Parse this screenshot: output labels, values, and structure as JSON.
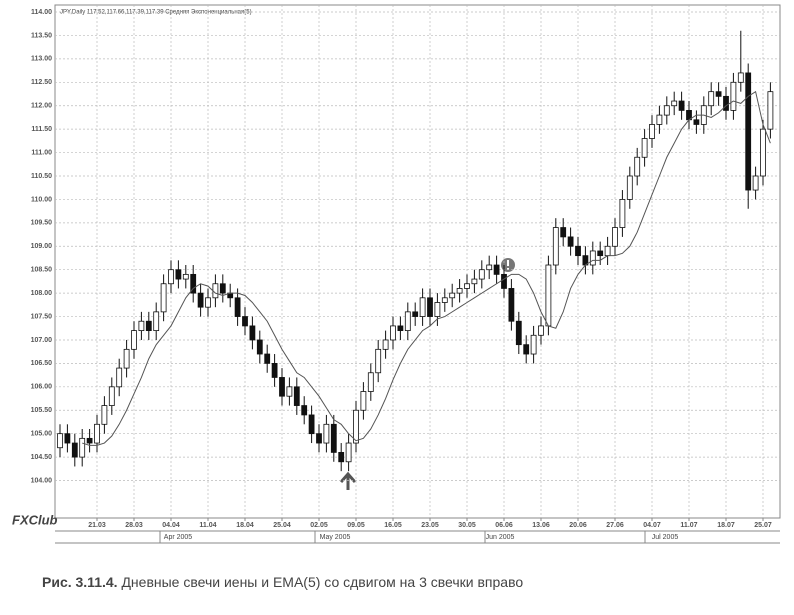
{
  "chart_data": {
    "type": "candlestick",
    "header": "JPY,Daily 117.52,117.66,117.39,117.39  Средняя Экспоненциальная(5)",
    "categories": [
      null,
      null,
      null,
      null,
      null,
      "21.03",
      null,
      null,
      null,
      null,
      "28.03",
      null,
      null,
      null,
      null,
      "04.04",
      null,
      null,
      null,
      null,
      "11.04",
      null,
      null,
      null,
      null,
      "18.04",
      null,
      null,
      null,
      null,
      "25.04",
      null,
      null,
      null,
      null,
      "02.05",
      null,
      null,
      null,
      null,
      "09.05",
      null,
      null,
      null,
      null,
      "16.05",
      null,
      null,
      null,
      null,
      "23.05",
      null,
      null,
      null,
      null,
      "30.05",
      null,
      null,
      null,
      null,
      "06.06",
      null,
      null,
      null,
      null,
      "13.06",
      null,
      null,
      null,
      null,
      "20.06",
      null,
      null,
      null,
      null,
      "27.06",
      null,
      null,
      null,
      null,
      "04.07",
      null,
      null,
      null,
      null,
      "11.07",
      null,
      null,
      null,
      null,
      "18.07",
      null,
      null,
      null,
      null,
      "25.07",
      null
    ],
    "open": [
      104.7,
      105,
      104.8,
      104.5,
      104.9,
      104.8,
      105.2,
      105.6,
      106,
      106.4,
      106.8,
      107.2,
      107.4,
      107.2,
      107.6,
      108.2,
      108.5,
      108.3,
      108.4,
      108,
      107.7,
      107.9,
      108.2,
      108,
      107.9,
      107.5,
      107.3,
      107,
      106.7,
      106.5,
      106.2,
      105.8,
      106,
      105.6,
      105.4,
      105,
      104.8,
      105.2,
      104.6,
      104.4,
      104.8,
      105.5,
      105.9,
      106.3,
      106.8,
      107,
      107.3,
      107.2,
      107.6,
      107.5,
      107.9,
      107.5,
      107.8,
      107.9,
      108,
      108.1,
      108.2,
      108.3,
      108.5,
      108.6,
      108.4,
      108.1,
      107.4,
      106.9,
      106.7,
      107.1,
      107.3,
      108.6,
      109.4,
      109.2,
      109,
      108.8,
      108.6,
      108.9,
      108.8,
      109,
      109.4,
      110,
      110.5,
      110.9,
      111.3,
      111.6,
      111.8,
      112,
      112.1,
      111.9,
      111.7,
      111.6,
      112,
      112.3,
      112.2,
      111.9,
      112.5,
      112.7,
      110.2,
      110.5,
      111.5
    ],
    "high": [
      105.2,
      105.2,
      105,
      105.1,
      105.1,
      105.4,
      105.8,
      106.2,
      106.6,
      107,
      107.4,
      107.6,
      107.6,
      107.8,
      108.4,
      108.7,
      108.7,
      108.6,
      108.6,
      108.2,
      108.1,
      108.4,
      108.4,
      108.2,
      108.1,
      107.7,
      107.5,
      107.2,
      106.9,
      106.7,
      106.4,
      106.2,
      106.2,
      105.8,
      105.6,
      105.2,
      105.4,
      105.4,
      104.8,
      105,
      105.7,
      106.1,
      106.5,
      107,
      107.2,
      107.5,
      107.5,
      107.8,
      107.8,
      108.1,
      108.1,
      108,
      108.1,
      108.2,
      108.3,
      108.4,
      108.5,
      108.7,
      108.8,
      108.8,
      108.6,
      108.3,
      107.6,
      107.1,
      107.3,
      107.5,
      108.8,
      109.6,
      109.6,
      109.4,
      109.2,
      109,
      109.1,
      109.1,
      109.2,
      109.6,
      110.2,
      110.7,
      111.1,
      111.5,
      111.8,
      112,
      112.2,
      112.3,
      112.3,
      112.1,
      111.9,
      112.2,
      112.5,
      112.5,
      112.4,
      112.7,
      113.6,
      112.9,
      110.7,
      111.7,
      112.5
    ],
    "low": [
      104.5,
      104.6,
      104.3,
      104.3,
      104.6,
      104.6,
      105,
      105.4,
      105.8,
      106.2,
      106.6,
      107,
      107,
      107,
      107.4,
      108,
      108.1,
      108.1,
      107.8,
      107.5,
      107.5,
      107.7,
      107.8,
      107.7,
      107.3,
      107.1,
      106.8,
      106.5,
      106.3,
      106,
      105.6,
      105.6,
      105.4,
      105.2,
      104.8,
      104.6,
      104.6,
      104.4,
      104.2,
      104.2,
      104.6,
      105.3,
      105.7,
      106.1,
      106.6,
      106.8,
      107,
      107,
      107.3,
      107.3,
      107.3,
      107.3,
      107.6,
      107.7,
      107.8,
      107.9,
      108,
      108.1,
      108.3,
      108.2,
      107.9,
      107.2,
      106.7,
      106.5,
      106.5,
      106.9,
      107.1,
      108.4,
      109,
      108.8,
      108.6,
      108.4,
      108.4,
      108.6,
      108.6,
      108.8,
      109.2,
      109.8,
      110.3,
      110.7,
      111.1,
      111.4,
      111.6,
      111.8,
      111.7,
      111.5,
      111.4,
      111.4,
      111.8,
      112,
      111.7,
      111.7,
      112.3,
      109.8,
      110,
      110.3,
      111.3
    ],
    "close": [
      105,
      104.8,
      104.5,
      104.9,
      104.8,
      105.2,
      105.6,
      106,
      106.4,
      106.8,
      107.2,
      107.4,
      107.2,
      107.6,
      108.2,
      108.5,
      108.3,
      108.4,
      108,
      107.7,
      107.9,
      108.2,
      108,
      107.9,
      107.5,
      107.3,
      107,
      106.7,
      106.5,
      106.2,
      105.8,
      106,
      105.6,
      105.4,
      105,
      104.8,
      105.2,
      104.6,
      104.4,
      104.8,
      105.5,
      105.9,
      106.3,
      106.8,
      107,
      107.3,
      107.2,
      107.6,
      107.5,
      107.9,
      107.5,
      107.8,
      107.9,
      108,
      108.1,
      108.2,
      108.3,
      108.5,
      108.6,
      108.4,
      108.1,
      107.4,
      106.9,
      106.7,
      107.1,
      107.3,
      108.6,
      109.4,
      109.2,
      109,
      108.8,
      108.6,
      108.9,
      108.8,
      109,
      109.4,
      110,
      110.5,
      110.9,
      111.3,
      111.6,
      111.8,
      112,
      112.1,
      111.9,
      111.7,
      111.6,
      112,
      112.3,
      112.2,
      111.9,
      112.5,
      112.7,
      110.2,
      110.5,
      111.5,
      112.3
    ],
    "ema": [
      null,
      null,
      null,
      104.8,
      104.75,
      104.75,
      104.8,
      104.95,
      105.2,
      105.5,
      105.85,
      106.2,
      106.6,
      106.9,
      107.1,
      107.3,
      107.6,
      107.9,
      108.1,
      108.2,
      108.15,
      108,
      107.95,
      108,
      108,
      107.95,
      107.8,
      107.6,
      107.4,
      107.1,
      106.8,
      106.55,
      106.3,
      106.2,
      106,
      105.8,
      105.55,
      105.3,
      105.2,
      105,
      104.85,
      104.9,
      105.1,
      105.4,
      105.75,
      106.15,
      106.5,
      106.8,
      107,
      107.2,
      107.3,
      107.45,
      107.5,
      107.6,
      107.7,
      107.8,
      107.9,
      108,
      108.1,
      108.2,
      108.3,
      108.4,
      108.4,
      108.3,
      108,
      107.6,
      107.3,
      107.25,
      107.6,
      108.1,
      108.4,
      108.6,
      108.7,
      108.7,
      108.8,
      108.8,
      108.85,
      109,
      109.3,
      109.7,
      110.1,
      110.5,
      110.9,
      111.2,
      111.5,
      111.7,
      111.8,
      111.8,
      111.75,
      111.85,
      112,
      112.1,
      112.05,
      112.2,
      112.3,
      111.6,
      111.2
    ],
    "up_color": "#ffffff",
    "down_color": "#111111",
    "line_color": "#555555",
    "ylim": [
      103.2,
      114.15
    ],
    "yticks": [
      {
        "value": 104,
        "label": "104.00"
      },
      {
        "value": 104.5,
        "label": "104.50"
      },
      {
        "value": 105,
        "label": "105.00"
      },
      {
        "value": 105.5,
        "label": "105.50"
      },
      {
        "value": 106,
        "label": "106.00"
      },
      {
        "value": 106.5,
        "label": "106.50"
      },
      {
        "value": 107,
        "label": "107.00"
      },
      {
        "value": 107.5,
        "label": "107.50"
      },
      {
        "value": 108,
        "label": "108.00"
      },
      {
        "value": 108.5,
        "label": "108.50"
      },
      {
        "value": 109,
        "label": "109.00"
      },
      {
        "value": 109.5,
        "label": "109.50"
      },
      {
        "value": 110,
        "label": "110.00"
      },
      {
        "value": 110.5,
        "label": "110.50"
      },
      {
        "value": 111,
        "label": "111.00"
      },
      {
        "value": 111.5,
        "label": "111.50"
      },
      {
        "value": 112,
        "label": "112.00"
      },
      {
        "value": 112.5,
        "label": "112.50"
      },
      {
        "value": 113,
        "label": "113.00"
      },
      {
        "value": 113.5,
        "label": "113.50"
      },
      {
        "value": 114,
        "label": "114.00"
      }
    ],
    "grid": true,
    "month_labels": [
      "Apr 2005",
      "May 2005",
      "Jun 2005",
      "Jul 2005"
    ],
    "logo": "FXClub"
  },
  "caption": {
    "label": "Рис. 3.11.4.",
    "text": "Дневные свечи иены и EMA(5) со сдвигом на 3 свечки вправо"
  }
}
